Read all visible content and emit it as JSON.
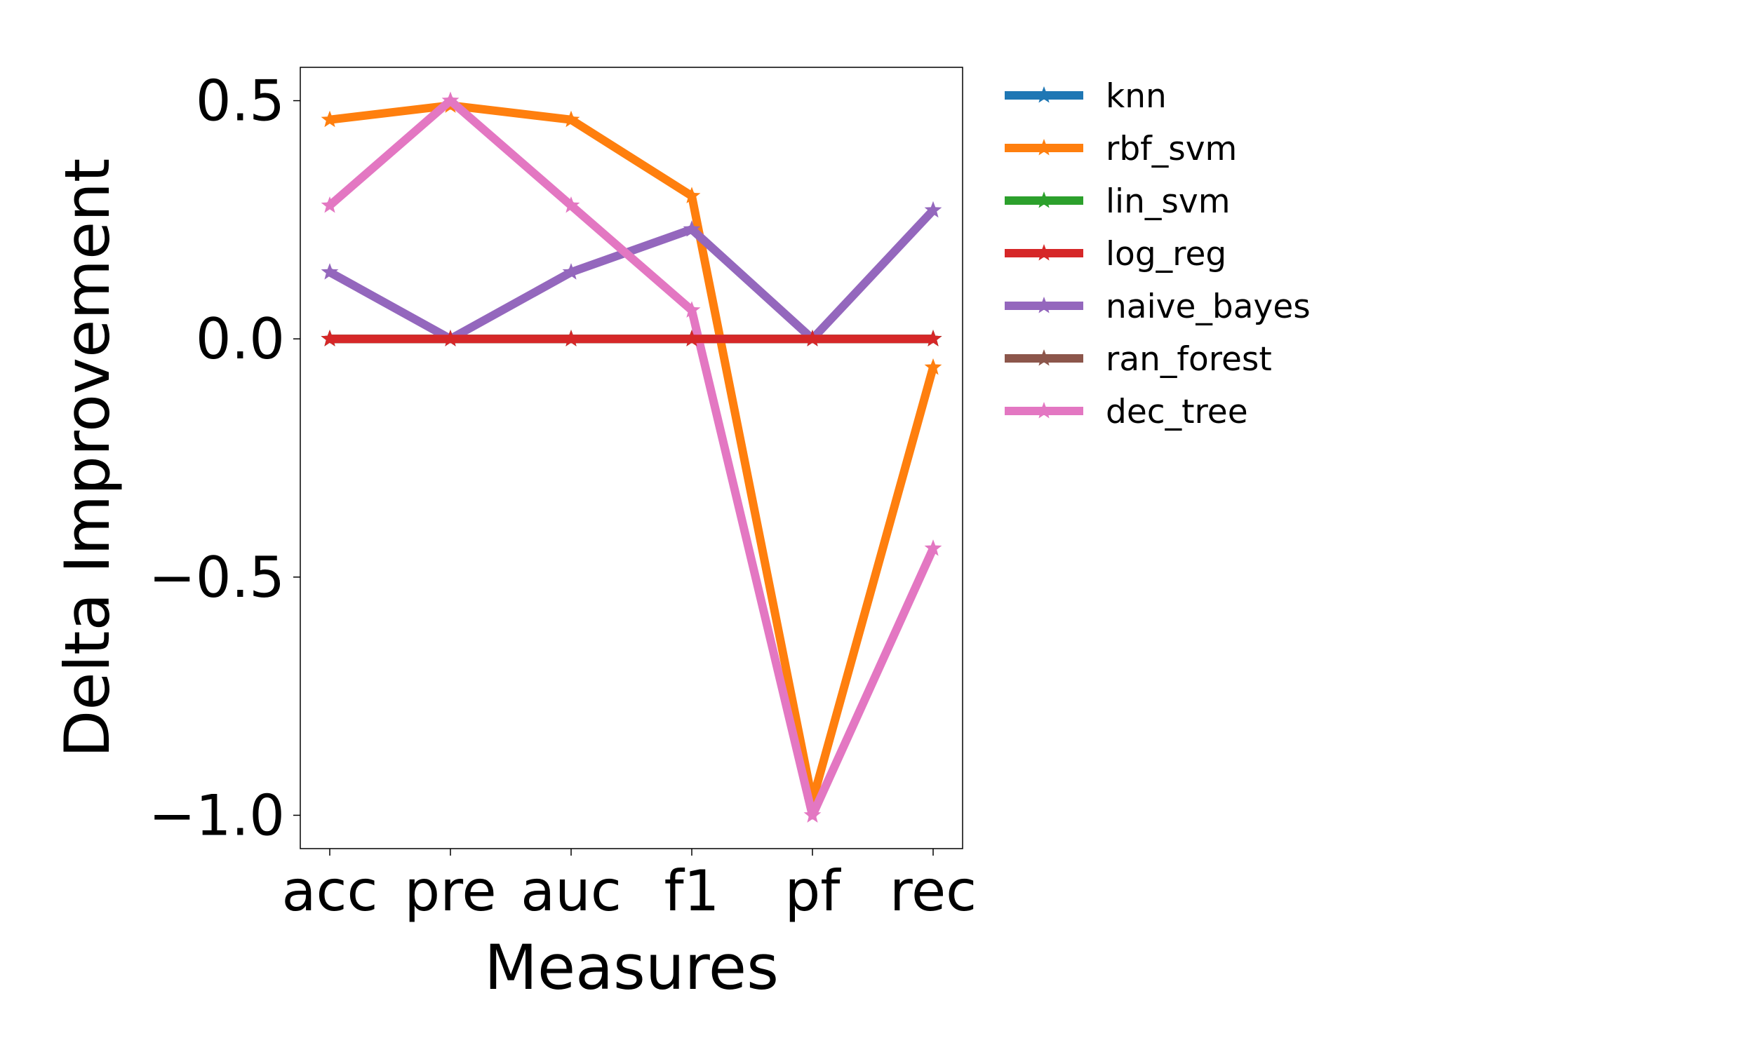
{
  "chart_data": {
    "type": "line",
    "title": "",
    "xlabel": "Measures",
    "ylabel": "Delta Improvement",
    "categories": [
      "acc",
      "pre",
      "auc",
      "f1",
      "pf",
      "rec"
    ],
    "yticks": [
      0.5,
      0.0,
      -0.5,
      -1.0
    ],
    "ytick_labels": [
      "0.5",
      "0.0",
      "−0.5",
      "−1.0"
    ],
    "ylim": [
      -1.07,
      0.57
    ],
    "grid": false,
    "legend_position": "outside-right-top",
    "marker": "star",
    "series": [
      {
        "name": "knn",
        "color": "#1f77b4",
        "values": [
          0,
          0,
          0,
          0,
          0,
          0
        ]
      },
      {
        "name": "rbf_svm",
        "color": "#ff7f0e",
        "values": [
          0.46,
          0.49,
          0.46,
          0.3,
          -0.97,
          -0.06
        ]
      },
      {
        "name": "lin_svm",
        "color": "#2ca02c",
        "values": [
          0,
          0,
          0,
          0,
          0,
          0
        ]
      },
      {
        "name": "log_reg",
        "color": "#d62728",
        "values": [
          0,
          0,
          0,
          0,
          0,
          0
        ]
      },
      {
        "name": "naive_bayes",
        "color": "#9467bd",
        "values": [
          0.14,
          0.0,
          0.14,
          0.23,
          0.0,
          0.27
        ]
      },
      {
        "name": "ran_forest",
        "color": "#8c564b",
        "values": [
          0,
          0,
          0,
          0,
          0,
          0
        ]
      },
      {
        "name": "dec_tree",
        "color": "#e377c2",
        "values": [
          0.28,
          0.5,
          0.28,
          0.06,
          -1.0,
          -0.44
        ]
      }
    ],
    "draw_order": [
      "knn",
      "lin_svm",
      "ran_forest",
      "rbf_svm",
      "naive_bayes",
      "dec_tree",
      "log_reg"
    ]
  }
}
